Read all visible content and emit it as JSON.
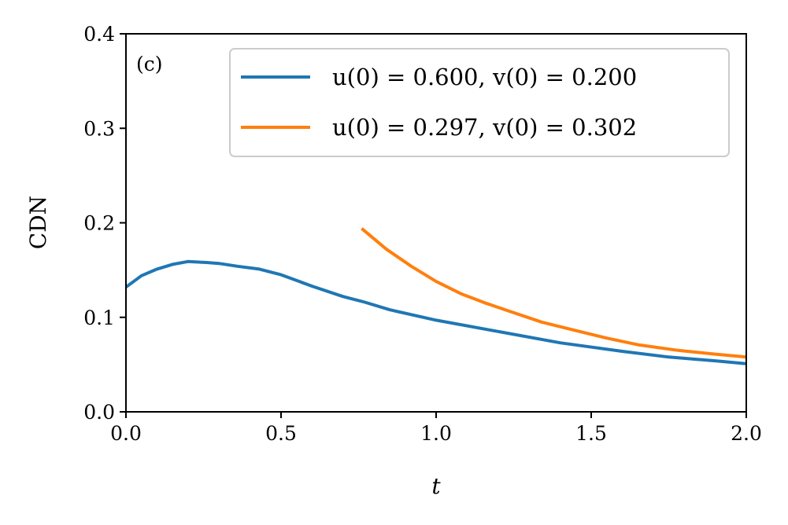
{
  "chart_data": {
    "type": "line",
    "panel_label": "(c)",
    "title": "",
    "xlabel": "t",
    "ylabel": "CDN",
    "xlim": [
      0,
      2.0
    ],
    "ylim": [
      0,
      0.4
    ],
    "xticks": [
      "0.0",
      "0.5",
      "1.0",
      "1.5",
      "2.0"
    ],
    "yticks": [
      "0.0",
      "0.1",
      "0.2",
      "0.3",
      "0.4"
    ],
    "grid": false,
    "legend_position": "top-right",
    "series": [
      {
        "name": "u(0) = 0.600, v(0) = 0.200",
        "color": "#1f77b4",
        "x": [
          0.0,
          0.05,
          0.1,
          0.15,
          0.2,
          0.26,
          0.3,
          0.36,
          0.43,
          0.5,
          0.6,
          0.7,
          0.77,
          0.85,
          1.0,
          1.2,
          1.4,
          1.6,
          1.75,
          1.9,
          2.0
        ],
        "y": [
          0.132,
          0.144,
          0.151,
          0.156,
          0.159,
          0.158,
          0.157,
          0.154,
          0.151,
          0.145,
          0.133,
          0.122,
          0.116,
          0.108,
          0.097,
          0.085,
          0.073,
          0.064,
          0.058,
          0.054,
          0.051
        ]
      },
      {
        "name": "u(0) = 0.297, v(0) = 0.302",
        "color": "#ff7f0e",
        "x": [
          0.76,
          0.84,
          0.92,
          1.0,
          1.08,
          1.16,
          1.24,
          1.34,
          1.45,
          1.55,
          1.65,
          1.78,
          1.9,
          2.0
        ],
        "y": [
          0.194,
          0.172,
          0.154,
          0.138,
          0.125,
          0.115,
          0.106,
          0.095,
          0.086,
          0.078,
          0.071,
          0.065,
          0.061,
          0.058
        ]
      }
    ]
  }
}
